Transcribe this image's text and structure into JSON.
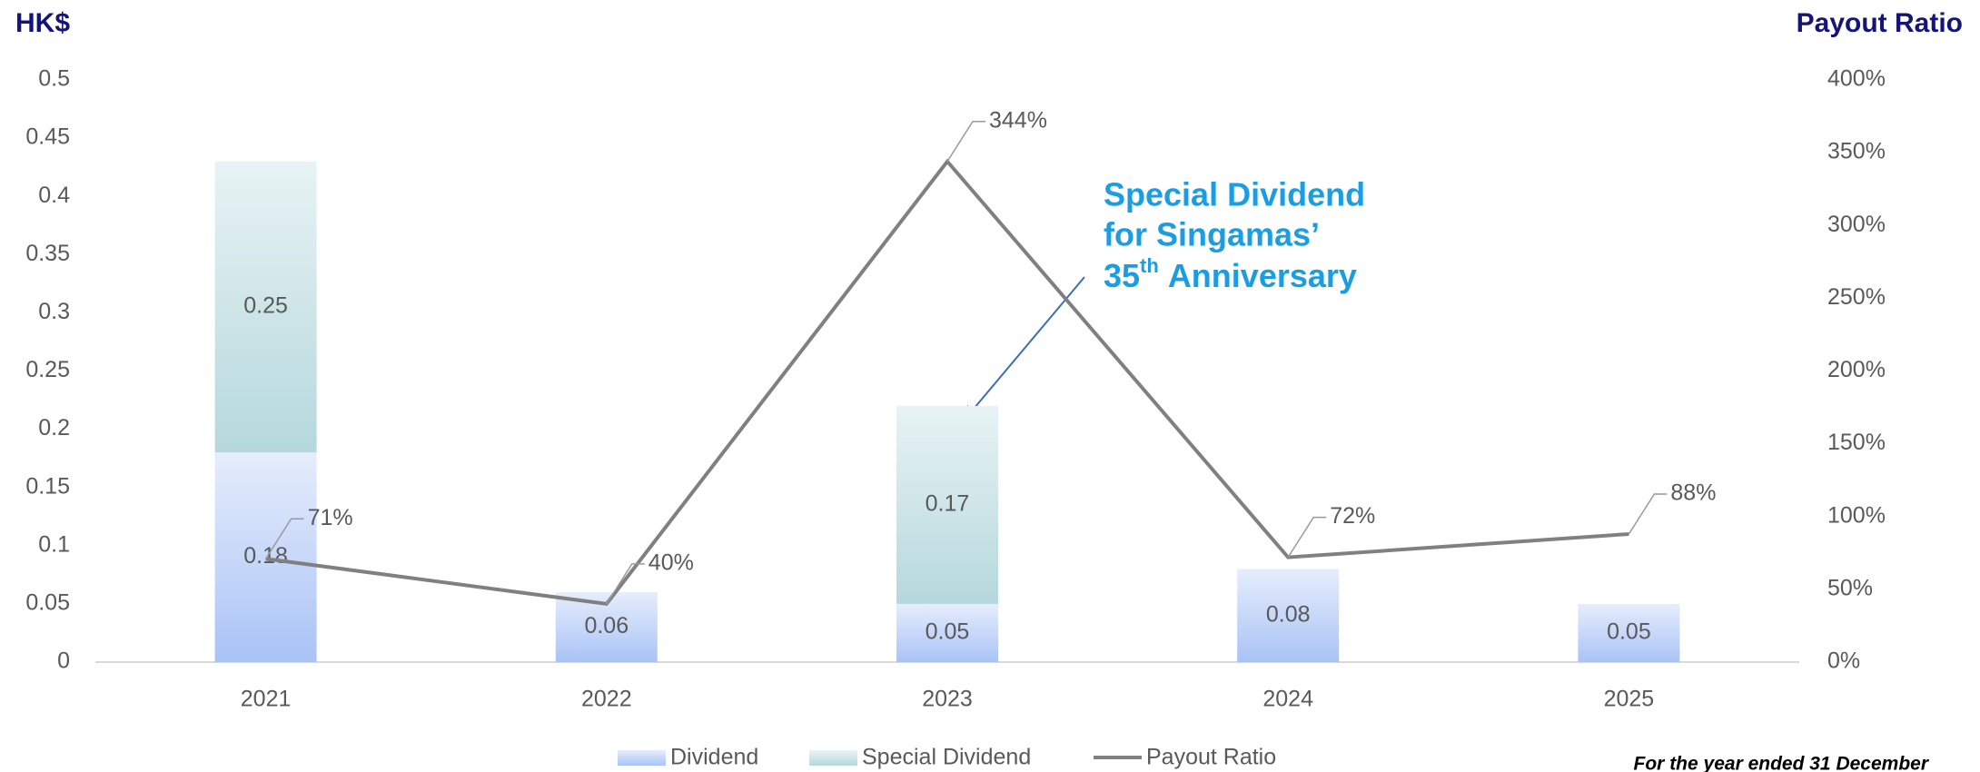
{
  "chart_data": {
    "type": "bar",
    "y_axis_title": "HK$",
    "y2_axis_title": "Payout Ratio",
    "categories": [
      "2021",
      "2022",
      "2023",
      "2024",
      "2025"
    ],
    "series": [
      {
        "name": "Dividend",
        "color": "#a9c3f6",
        "values": [
          0.18,
          0.06,
          0.05,
          0.08,
          0.05
        ]
      },
      {
        "name": "Special Dividend",
        "color": "#b5d8dd",
        "values": [
          0.25,
          null,
          0.17,
          null,
          null
        ]
      },
      {
        "name": "Payout Ratio",
        "type": "line",
        "axis": "y2",
        "color": "#808080",
        "values": [
          71,
          40,
          344,
          72,
          88
        ],
        "value_labels": [
          "71%",
          "40%",
          "344%",
          "72%",
          "88%"
        ]
      }
    ],
    "ylim": [
      0,
      0.5
    ],
    "yticks": [
      0,
      0.05,
      0.1,
      0.15,
      0.2,
      0.25,
      0.3,
      0.35,
      0.4,
      0.45,
      0.5
    ],
    "y2lim": [
      0,
      400
    ],
    "y2ticks": [
      {
        "value": 0,
        "label": "0%"
      },
      {
        "value": 50,
        "label": "50%"
      },
      {
        "value": 100,
        "label": "100%"
      },
      {
        "value": 150,
        "label": "150%"
      },
      {
        "value": 200,
        "label": "200%"
      },
      {
        "value": 250,
        "label": "250%"
      },
      {
        "value": 300,
        "label": "300%"
      },
      {
        "value": 350,
        "label": "350%"
      },
      {
        "value": 400,
        "label": "400%"
      }
    ],
    "annotation": [
      "Special Dividend",
      "for Singamas’",
      "35",
      "th",
      "Anniversary"
    ],
    "footnote": "For the year ended 31 December",
    "legend": "bottom",
    "grid": false
  }
}
